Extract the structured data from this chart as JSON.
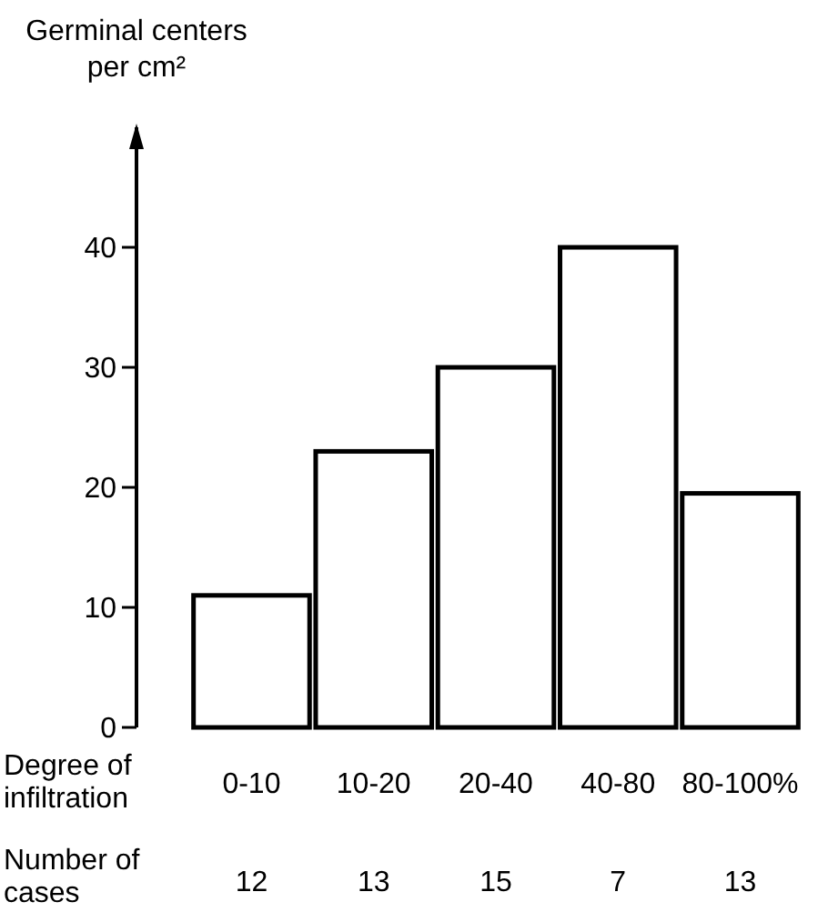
{
  "chart_data": {
    "type": "bar",
    "ylabel": "Germinal centers\nper cm²",
    "xlabel": "Degree of\ninfiltration",
    "categories": [
      "0-10",
      "10-20",
      "20-40",
      "40-80",
      "80-100%"
    ],
    "values": [
      11,
      23,
      30,
      40,
      19.5
    ],
    "color": "#ffffff",
    "ylim": [
      0,
      50
    ],
    "yticks": [
      0,
      10,
      20,
      30,
      40
    ],
    "grid": false,
    "annotations": [
      "Number of\ncases",
      "12",
      "13",
      "15",
      "7",
      "13"
    ]
  }
}
